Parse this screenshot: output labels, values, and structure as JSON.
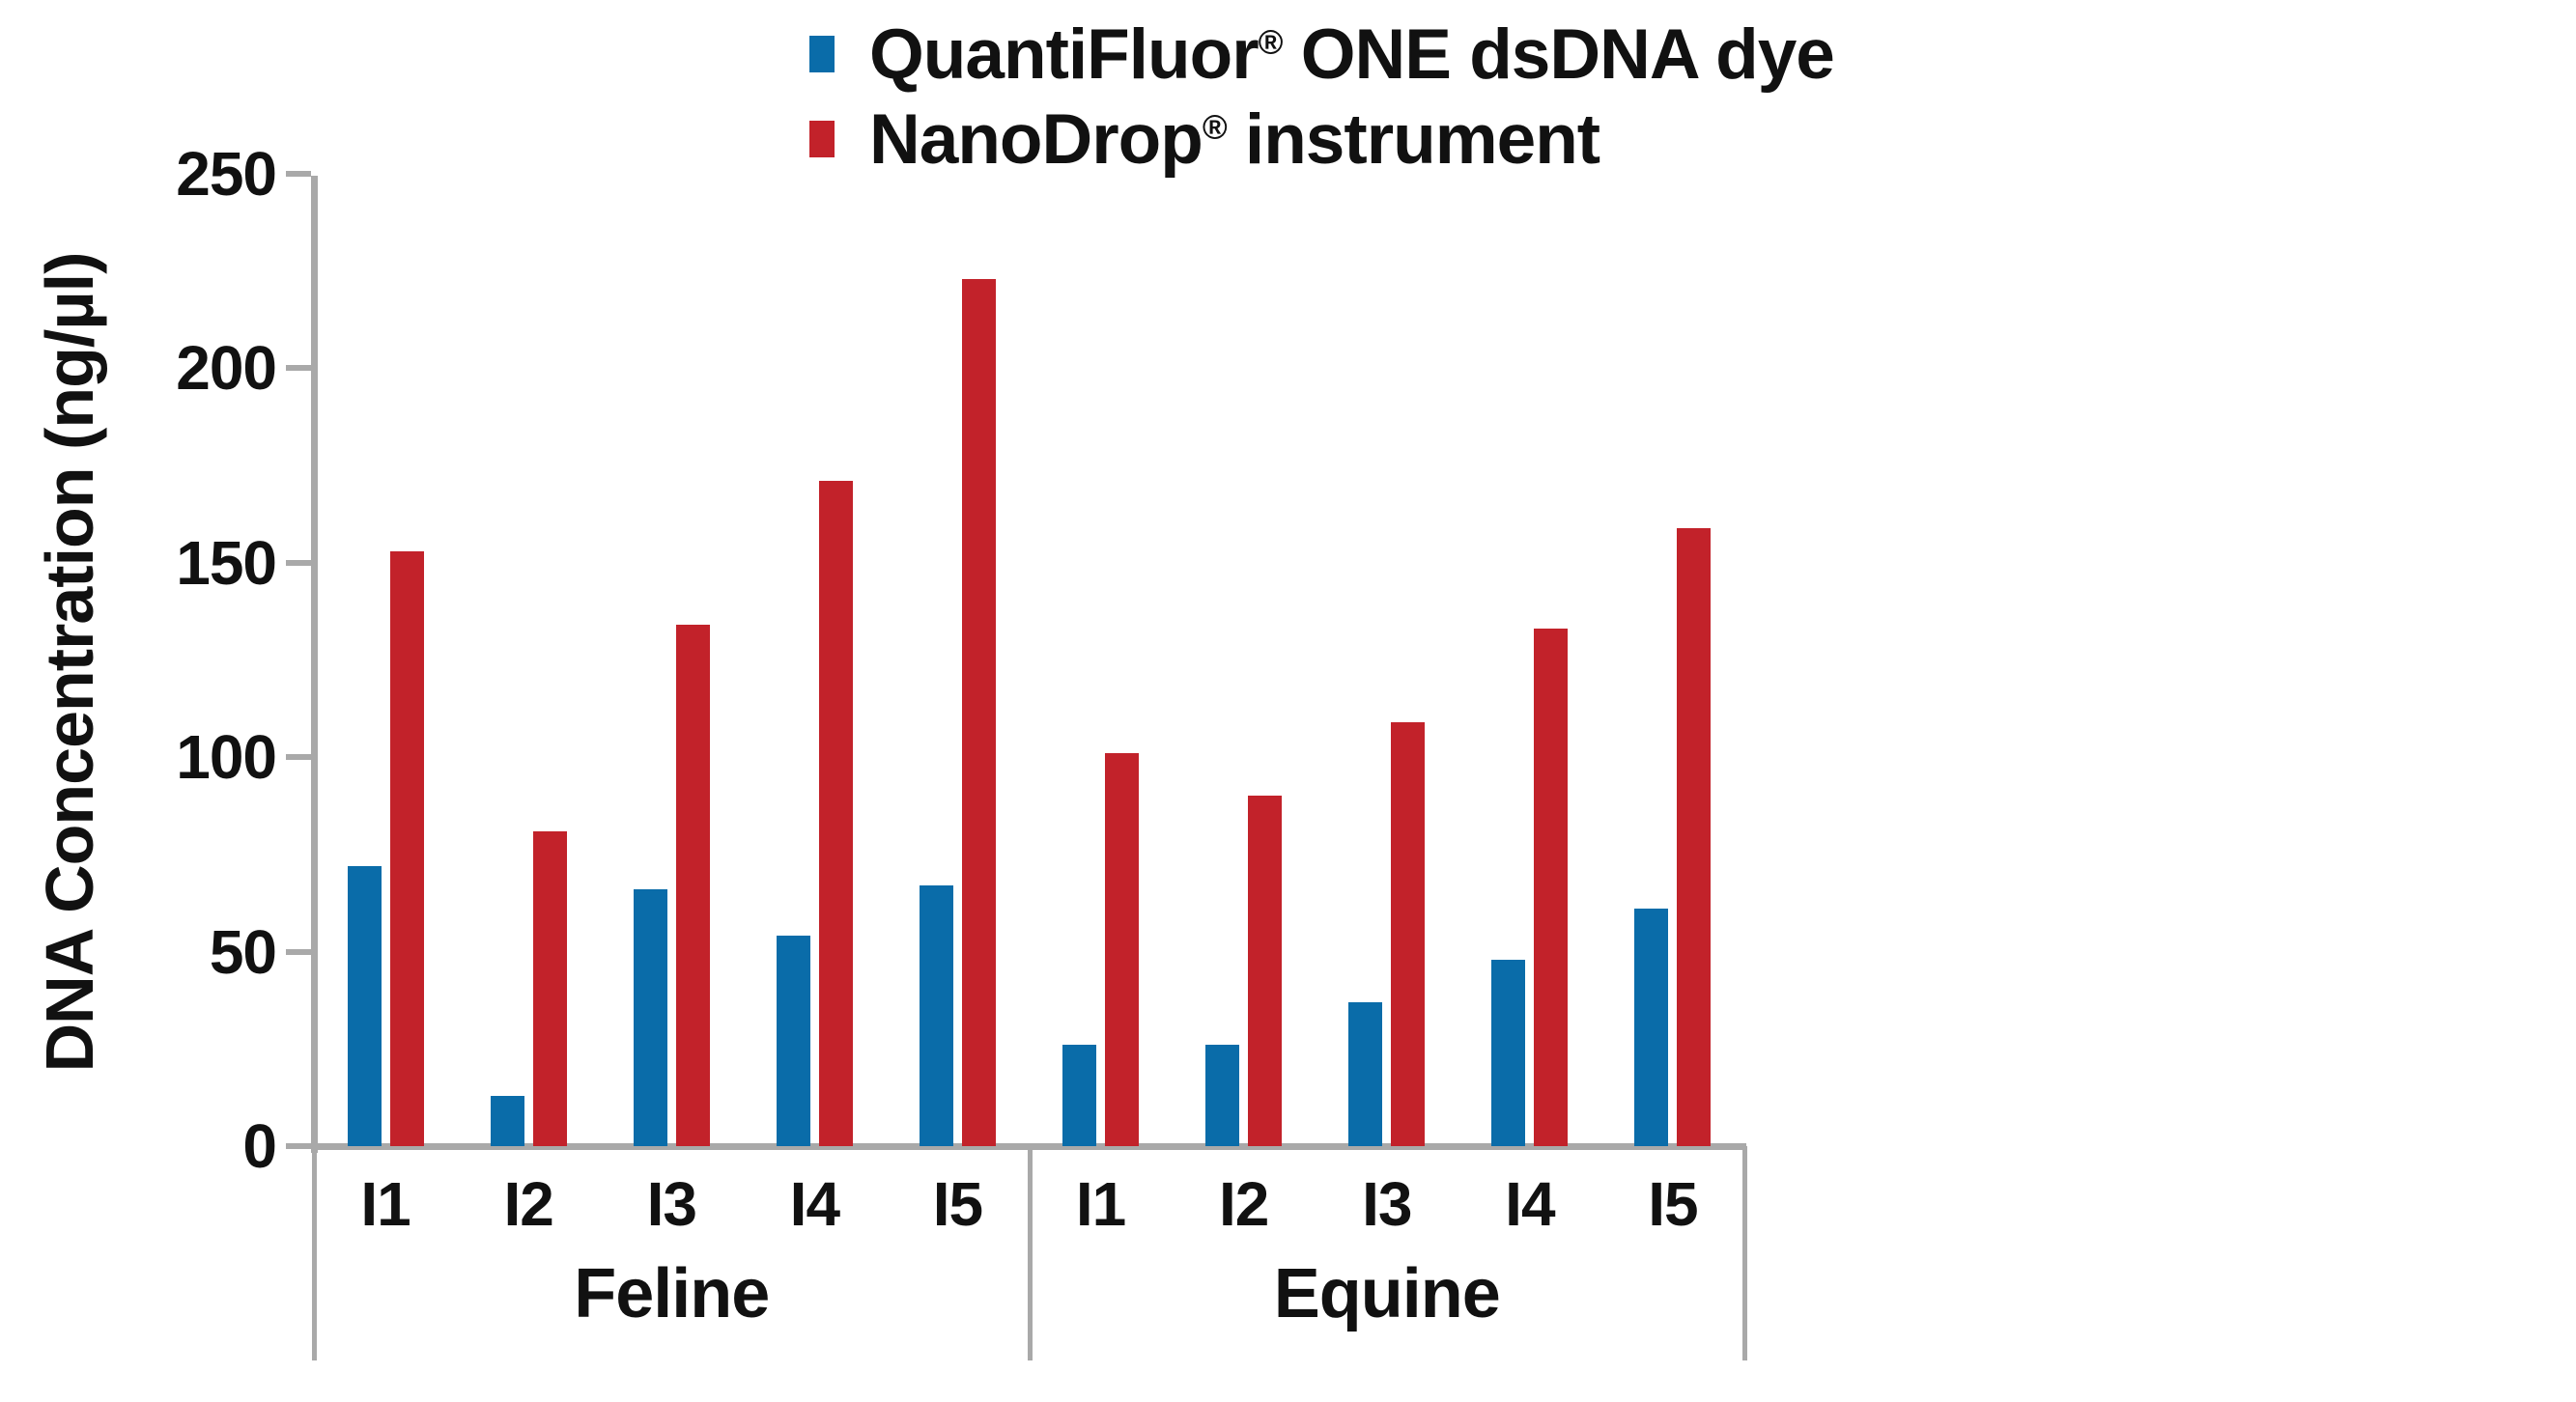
{
  "legend": {
    "items": [
      {
        "label": "QuantiFluor® ONE dsDNA dye",
        "color": "#0A6CA9"
      },
      {
        "label": "NanoDrop® instrument",
        "color": "#C2222A"
      }
    ]
  },
  "y_axis": {
    "title": "DNA Concentration (ng/µl)",
    "tick_labels": [
      "0",
      "50",
      "100",
      "150",
      "200",
      "250"
    ]
  },
  "x_axis": {
    "groups": [
      "Feline",
      "Equine"
    ],
    "categories": [
      "I1",
      "I2",
      "I3",
      "I4",
      "I5"
    ]
  },
  "colors": {
    "series1": "#0A6CA9",
    "series2": "#C2222A",
    "axis": "#A9A9A9",
    "text": "#111111"
  },
  "chart_data": {
    "type": "bar",
    "title": "",
    "xlabel": "",
    "ylabel": "DNA Concentration (ng/µl)",
    "ylim": [
      0,
      250
    ],
    "y_tick_step": 50,
    "grid": false,
    "legend_position": "top",
    "groups": [
      "Feline",
      "Equine"
    ],
    "categories": [
      "I1",
      "I2",
      "I3",
      "I4",
      "I5"
    ],
    "series": [
      {
        "name": "QuantiFluor® ONE dsDNA dye",
        "color": "#0A6CA9",
        "values": {
          "Feline": [
            72,
            13,
            66,
            54,
            67
          ],
          "Equine": [
            26,
            26,
            37,
            48,
            61
          ]
        }
      },
      {
        "name": "NanoDrop® instrument",
        "color": "#C2222A",
        "values": {
          "Feline": [
            153,
            81,
            134,
            171,
            223
          ],
          "Equine": [
            101,
            90,
            109,
            133,
            159
          ]
        }
      }
    ]
  }
}
